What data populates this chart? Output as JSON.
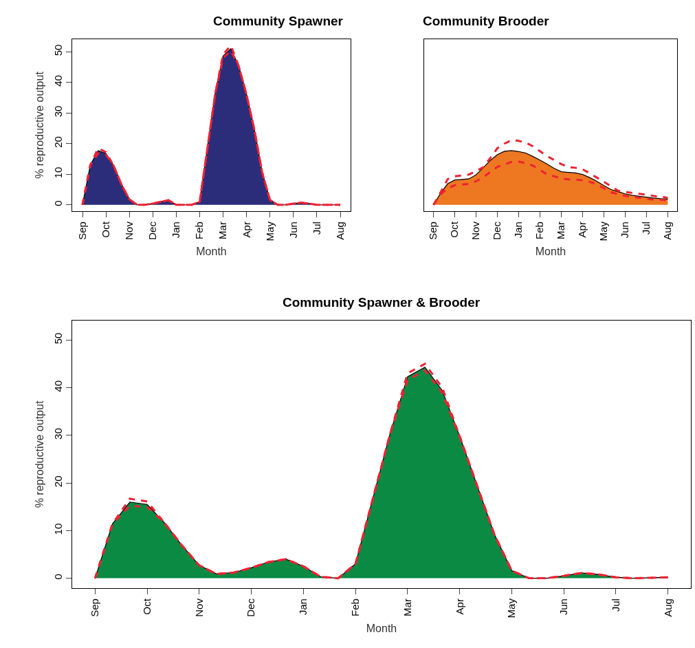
{
  "chart_data": [
    {
      "type": "area",
      "title": "Community Spawner",
      "xlabel": "Month",
      "ylabel": "% reproductive output",
      "ylim": [
        -2.08,
        54.08
      ],
      "yticks": [
        0,
        10,
        20,
        30,
        40,
        50
      ],
      "categories": [
        "Sep",
        null,
        null,
        "Oct",
        null,
        null,
        "Nov",
        null,
        null,
        "Dec",
        null,
        null,
        "Jan",
        null,
        null,
        "Feb",
        null,
        null,
        "Mar",
        null,
        null,
        "Apr",
        null,
        null,
        "May",
        null,
        null,
        "Jun",
        null,
        null,
        "Jul",
        null,
        null,
        "Aug"
      ],
      "series": [
        {
          "color": "#2b2d7b",
          "values": [
            0,
            13,
            17.7,
            16.8,
            12.7,
            6.6,
            1.8,
            0,
            0,
            0.4,
            1,
            1.5,
            0,
            0,
            0,
            1,
            18.6,
            36.5,
            48.6,
            51,
            45.3,
            36,
            24.6,
            10.6,
            1.6,
            0,
            0,
            0.4,
            0.7,
            0.4,
            0,
            0,
            0,
            0
          ]
        },
        {
          "type": "line",
          "color": "#ee2233",
          "line_style": "dashed",
          "values": [
            0,
            13,
            18.5,
            17.2,
            12.7,
            6.6,
            1.8,
            0,
            0,
            0.4,
            1,
            1.5,
            0,
            0,
            0,
            1,
            18.6,
            36.5,
            49.2,
            52,
            45.3,
            36,
            24.6,
            10.6,
            1.6,
            0,
            0,
            0.4,
            0.7,
            0.4,
            0,
            0,
            0,
            0
          ]
        },
        {
          "type": "line",
          "color": "#ee2233",
          "line_style": "dashed",
          "values": [
            0,
            13,
            16.8,
            16.4,
            12.7,
            6.6,
            1.8,
            0,
            0,
            0.4,
            1,
            1.5,
            0,
            0,
            0,
            1,
            18.6,
            36.5,
            48,
            50.3,
            45.3,
            36,
            24.6,
            10.6,
            1.6,
            0,
            0,
            0.4,
            0.7,
            0.4,
            0,
            0,
            0,
            0
          ]
        }
      ]
    },
    {
      "type": "area",
      "title": "Community Brooder",
      "xlabel": "Month",
      "ylim": [
        -2.08,
        54.08
      ],
      "tick_labels": "x",
      "categories": [
        "Sep",
        null,
        null,
        "Oct",
        null,
        null,
        "Nov",
        null,
        null,
        "Dec",
        null,
        null,
        "Jan",
        null,
        null,
        "Feb",
        null,
        null,
        "Mar",
        null,
        null,
        "Apr",
        null,
        null,
        "May",
        null,
        null,
        "Jun",
        null,
        null,
        "Jul",
        null,
        null,
        "Aug"
      ],
      "series": [
        {
          "color": "#ee7722",
          "values": [
            0,
            3.8,
            6.9,
            8.1,
            8.3,
            8.5,
            9.8,
            12.1,
            14.5,
            16.4,
            17.5,
            17.7,
            17.4,
            16.9,
            15.8,
            14.6,
            13.3,
            11.9,
            10.8,
            10.6,
            10.4,
            9.9,
            8.9,
            7.7,
            6.3,
            5,
            4.3,
            3.6,
            3.1,
            2.8,
            2.5,
            2.2,
            2,
            1.9
          ]
        },
        {
          "type": "line",
          "color": "#ee2233",
          "line_style": "dashed",
          "values": [
            0,
            4.1,
            8.4,
            9.3,
            9.6,
            9.9,
            11,
            12.3,
            15.3,
            18.5,
            20,
            21.1,
            20.9,
            20.3,
            19.1,
            17.5,
            15.9,
            14.6,
            13.3,
            12.3,
            12.1,
            11.6,
            10.3,
            8.9,
            7.5,
            6.1,
            4.6,
            4.2,
            3.9,
            3.6,
            3.3,
            2.9,
            2.6,
            2.3
          ]
        },
        {
          "type": "line",
          "color": "#ee2233",
          "line_style": "dashed",
          "values": [
            0,
            3.4,
            5.4,
            6.4,
            6.6,
            6.8,
            7.7,
            9,
            10.7,
            12.4,
            13.2,
            14,
            14.1,
            13.6,
            12.8,
            11.4,
            9.9,
            9.3,
            8.6,
            8.3,
            8.2,
            8,
            7.5,
            6.7,
            5.4,
            4.1,
            3.5,
            2.9,
            2.6,
            2.3,
            2,
            1.7,
            1.6,
            1.5
          ]
        }
      ]
    },
    {
      "type": "area",
      "title": "Community Spawner & Brooder",
      "xlabel": "Month",
      "ylabel": "% reproductive output",
      "ylim": [
        -2.08,
        54.08
      ],
      "yticks": [
        0,
        10,
        20,
        30,
        40,
        50
      ],
      "categories": [
        "Sep",
        null,
        null,
        "Oct",
        null,
        null,
        "Nov",
        null,
        null,
        "Dec",
        null,
        null,
        "Jan",
        null,
        null,
        "Feb",
        null,
        null,
        "Mar",
        null,
        null,
        "Apr",
        null,
        null,
        "May",
        null,
        null,
        "Jun",
        null,
        null,
        "Jul",
        null,
        null,
        "Aug"
      ],
      "series": [
        {
          "color": "#0a8a43",
          "values": [
            0,
            11.4,
            16,
            15.5,
            11.6,
            6.9,
            2.7,
            0.9,
            1.2,
            2.2,
            3.4,
            4,
            2.5,
            0.3,
            0,
            3,
            16.7,
            30.4,
            42.3,
            44.3,
            39.4,
            29.8,
            19.5,
            9.2,
            1.6,
            0,
            0,
            0.5,
            1.1,
            0.8,
            0.2,
            0,
            0.1,
            0.2
          ]
        },
        {
          "type": "line",
          "color": "#ee2233",
          "line_style": "dashed",
          "values": [
            0,
            11.4,
            16.7,
            16.1,
            11.6,
            6.9,
            2.7,
            0.9,
            1.2,
            2.2,
            3.4,
            4,
            2.5,
            0.3,
            0,
            3,
            16.7,
            30.4,
            43,
            45,
            40,
            29.8,
            19.5,
            9.2,
            1.6,
            0,
            0,
            0.5,
            1.1,
            0.8,
            0.2,
            0,
            0.1,
            0.2
          ]
        },
        {
          "type": "line",
          "color": "#ee2233",
          "line_style": "dashed",
          "values": [
            0,
            11.4,
            15.2,
            15,
            11.6,
            6.9,
            2.7,
            0.9,
            1.2,
            2.2,
            3.4,
            4,
            2.5,
            0.3,
            0,
            3,
            16.7,
            30.4,
            41.6,
            43.6,
            38.9,
            29.8,
            19.5,
            9.2,
            1.6,
            0,
            0,
            0.5,
            1.1,
            0.8,
            0.2,
            0,
            0.1,
            0.2
          ]
        }
      ]
    }
  ]
}
